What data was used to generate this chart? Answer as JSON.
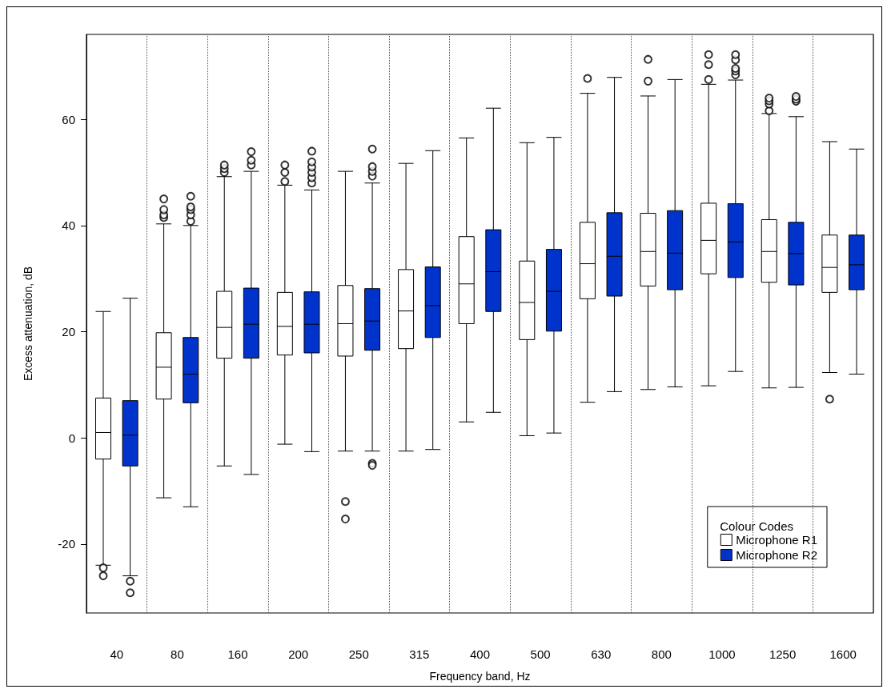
{
  "chart_data": {
    "type": "box",
    "xlabel": "Frequency band, Hz",
    "ylabel": "Excess attenuation, dB",
    "legend_title": "Colour Codes",
    "legend": "bottom right",
    "grid": "x",
    "categories": [
      "40",
      "80",
      "160",
      "200",
      "250",
      "315",
      "400",
      "500",
      "630",
      "800",
      "1000",
      "1250",
      "1600"
    ],
    "ylim": [
      -33,
      76
    ],
    "yticks": [
      -20,
      0,
      20,
      40,
      60
    ],
    "series": [
      {
        "name": "Microphone R1",
        "color": "#ffffff",
        "boxes": [
          {
            "low": -24,
            "q1": -4,
            "median": 1,
            "q3": 7.5,
            "high": 23.8,
            "outliers": [
              -24.5,
              -26
            ]
          },
          {
            "low": -11.3,
            "q1": 7.3,
            "median": 13.3,
            "q3": 19.8,
            "high": 40.3,
            "outliers": [
              41.5,
              42,
              43,
              45
            ]
          },
          {
            "low": -5.3,
            "q1": 15,
            "median": 20.8,
            "q3": 27.6,
            "high": 49.2,
            "outliers": [
              50,
              50.7,
              51.4
            ]
          },
          {
            "low": -1.2,
            "q1": 15.6,
            "median": 21,
            "q3": 27.4,
            "high": 47.6,
            "outliers": [
              48.3,
              50,
              51.4
            ]
          },
          {
            "low": -2.5,
            "q1": 15.4,
            "median": 21.5,
            "q3": 28.7,
            "high": 50.2,
            "outliers": [
              -12,
              -15.3
            ]
          },
          {
            "low": -2.5,
            "q1": 16.8,
            "median": 23.9,
            "q3": 31.7,
            "high": 51.7
          },
          {
            "low": 3,
            "q1": 21.5,
            "median": 29,
            "q3": 37.9,
            "high": 56.5
          },
          {
            "low": 0.4,
            "q1": 18.5,
            "median": 25.5,
            "q3": 33.3,
            "high": 55.6
          },
          {
            "low": 6.7,
            "q1": 26.2,
            "median": 32.8,
            "q3": 40.6,
            "high": 64.9,
            "outliers": [
              67.7
            ]
          },
          {
            "low": 9.1,
            "q1": 28.6,
            "median": 35.1,
            "q3": 42.3,
            "high": 64.4,
            "outliers": [
              67.2,
              71.3
            ]
          },
          {
            "low": 9.8,
            "q1": 30.9,
            "median": 37.2,
            "q3": 44.2,
            "high": 66.6,
            "outliers": [
              67.5,
              70.3,
              72.2
            ]
          },
          {
            "low": 9.4,
            "q1": 29.3,
            "median": 35.1,
            "q3": 41.1,
            "high": 61.1,
            "outliers": [
              61.6,
              62.9,
              63.5,
              64
            ]
          },
          {
            "low": 12.3,
            "q1": 27.4,
            "median": 32.1,
            "q3": 38.2,
            "high": 55.8,
            "outliers": [
              7.3
            ]
          }
        ]
      },
      {
        "name": "Microphone R2",
        "color": "#0033cc",
        "boxes": [
          {
            "low": -26,
            "q1": -5.3,
            "median": 0.5,
            "q3": 7,
            "high": 26.3,
            "outliers": [
              -27,
              -29.2
            ]
          },
          {
            "low": -13,
            "q1": 6.6,
            "median": 12,
            "q3": 18.9,
            "high": 40,
            "outliers": [
              40.8,
              42,
              43,
              43.5,
              45.5
            ]
          },
          {
            "low": -6.9,
            "q1": 15,
            "median": 21.4,
            "q3": 28.2,
            "high": 50.2,
            "outliers": [
              51.4,
              52.3,
              53.9
            ]
          },
          {
            "low": -2.6,
            "q1": 16,
            "median": 21.4,
            "q3": 27.5,
            "high": 46.7,
            "outliers": [
              48,
              49,
              50,
              51,
              52,
              54
            ]
          },
          {
            "low": -2.5,
            "q1": 16.5,
            "median": 22,
            "q3": 28.1,
            "high": 48,
            "outliers": [
              49.3,
              50.2,
              51.1,
              54.4,
              -4.8,
              -5.2
            ]
          },
          {
            "low": -2.2,
            "q1": 18.9,
            "median": 24.9,
            "q3": 32.2,
            "high": 54.1
          },
          {
            "low": 4.8,
            "q1": 23.8,
            "median": 31.3,
            "q3": 39.2,
            "high": 62.1
          },
          {
            "low": 0.9,
            "q1": 20.1,
            "median": 27.6,
            "q3": 35.5,
            "high": 56.6
          },
          {
            "low": 8.7,
            "q1": 26.7,
            "median": 34.2,
            "q3": 42.4,
            "high": 67.9
          },
          {
            "low": 9.6,
            "q1": 27.9,
            "median": 34.8,
            "q3": 42.8,
            "high": 67.5
          },
          {
            "low": 12.5,
            "q1": 30.2,
            "median": 36.9,
            "q3": 44.1,
            "high": 67.4,
            "outliers": [
              68.4,
              69.1,
              69.6,
              71.2,
              72.2
            ]
          },
          {
            "low": 9.5,
            "q1": 28.8,
            "median": 34.7,
            "q3": 40.6,
            "high": 60.5,
            "outliers": [
              63.4,
              63.8,
              64.3
            ]
          },
          {
            "low": 12,
            "q1": 27.9,
            "median": 32.6,
            "q3": 38.2,
            "high": 54.4
          }
        ]
      }
    ]
  }
}
